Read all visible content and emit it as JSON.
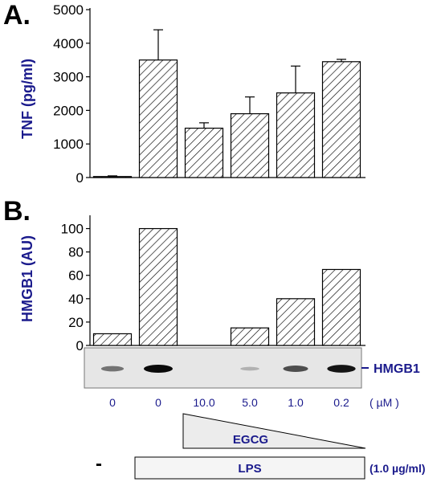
{
  "chart_data": [
    {
      "type": "bar",
      "panel": "A.",
      "ylabel": "TNF (pg/ml)",
      "ylim": [
        0,
        5000
      ],
      "yticks": [
        "0",
        "1000",
        "2000",
        "3000",
        "4000",
        "5000"
      ],
      "values": [
        30,
        3500,
        1470,
        1900,
        2520,
        3450
      ],
      "errors": [
        20,
        900,
        160,
        500,
        800,
        70
      ],
      "pattern": "diagonal-hatch"
    },
    {
      "type": "bar",
      "panel": "B.",
      "ylabel": "HMGB1 (AU)",
      "ylim": [
        0,
        110
      ],
      "yticks": [
        "0",
        "20",
        "40",
        "60",
        "80",
        "100"
      ],
      "values": [
        10,
        100,
        0,
        15,
        40,
        65
      ],
      "pattern": "diagonal-hatch"
    }
  ],
  "blot": {
    "label": "HMGB1",
    "band_intensities": [
      0.45,
      1.0,
      0,
      0.12,
      0.65,
      0.95
    ]
  },
  "doses": [
    "0",
    "0",
    "10.0",
    "5.0",
    "1.0",
    "0.2"
  ],
  "dose_unit": "( µM )",
  "egcg_label": "EGCG",
  "lps_label": "LPS",
  "lps_minus": "-",
  "lps_conc": "(1.0 µg/ml)"
}
